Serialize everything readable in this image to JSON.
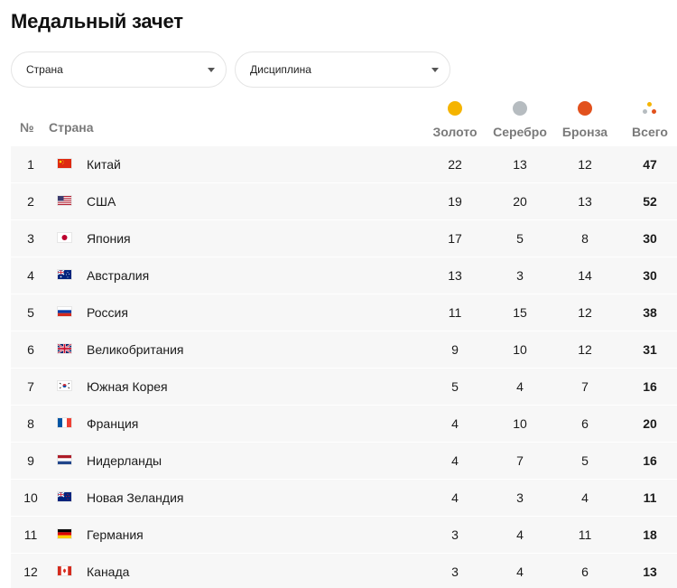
{
  "page": {
    "title": "Медальный зачет"
  },
  "filters": {
    "country": {
      "label": "Страна"
    },
    "discipline": {
      "label": "Дисциплина"
    }
  },
  "table": {
    "headers": {
      "rank": "№",
      "country": "Страна",
      "gold": "Золото",
      "silver": "Серебро",
      "bronze": "Бронза",
      "total": "Всего"
    },
    "colors": {
      "gold": "#f5b400",
      "silver": "#b6bcc0",
      "bronze": "#e2511d"
    },
    "rows": [
      {
        "rank": "1",
        "flag": "china-flag-icon",
        "country": "Китай",
        "gold": "22",
        "silver": "13",
        "bronze": "12",
        "total": "47"
      },
      {
        "rank": "2",
        "flag": "usa-flag-icon",
        "country": "США",
        "gold": "19",
        "silver": "20",
        "bronze": "13",
        "total": "52"
      },
      {
        "rank": "3",
        "flag": "japan-flag-icon",
        "country": "Япония",
        "gold": "17",
        "silver": "5",
        "bronze": "8",
        "total": "30"
      },
      {
        "rank": "4",
        "flag": "australia-flag-icon",
        "country": "Австралия",
        "gold": "13",
        "silver": "3",
        "bronze": "14",
        "total": "30"
      },
      {
        "rank": "5",
        "flag": "russia-flag-icon",
        "country": "Россия",
        "gold": "11",
        "silver": "15",
        "bronze": "12",
        "total": "38"
      },
      {
        "rank": "6",
        "flag": "uk-flag-icon",
        "country": "Великобритания",
        "gold": "9",
        "silver": "10",
        "bronze": "12",
        "total": "31"
      },
      {
        "rank": "7",
        "flag": "south-korea-flag-icon",
        "country": "Южная Корея",
        "gold": "5",
        "silver": "4",
        "bronze": "7",
        "total": "16"
      },
      {
        "rank": "8",
        "flag": "france-flag-icon",
        "country": "Франция",
        "gold": "4",
        "silver": "10",
        "bronze": "6",
        "total": "20"
      },
      {
        "rank": "9",
        "flag": "netherlands-flag-icon",
        "country": "Нидерланды",
        "gold": "4",
        "silver": "7",
        "bronze": "5",
        "total": "16"
      },
      {
        "rank": "10",
        "flag": "new-zealand-flag-icon",
        "country": "Новая Зеландия",
        "gold": "4",
        "silver": "3",
        "bronze": "4",
        "total": "11"
      },
      {
        "rank": "11",
        "flag": "germany-flag-icon",
        "country": "Германия",
        "gold": "3",
        "silver": "4",
        "bronze": "11",
        "total": "18"
      },
      {
        "rank": "12",
        "flag": "canada-flag-icon",
        "country": "Канада",
        "gold": "3",
        "silver": "4",
        "bronze": "6",
        "total": "13"
      }
    ]
  }
}
